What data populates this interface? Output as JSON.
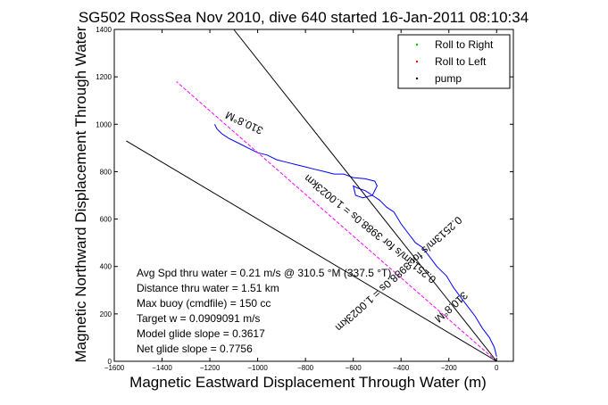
{
  "chart_data": {
    "type": "line",
    "title": "SG502 RossSea Nov 2010, dive 640 started 16-Jan-2011 08:10:34",
    "xlabel": "Magnetic Eastward Displacement Through Water (m)",
    "ylabel": "Magnetic Northward Displacement Through Water",
    "xlim": [
      -1600,
      70
    ],
    "ylim": [
      0,
      1400
    ],
    "xticks": [
      -1600,
      -1400,
      -1200,
      -1000,
      -800,
      -600,
      -400,
      -200,
      0
    ],
    "yticks": [
      0,
      200,
      400,
      600,
      800,
      1000,
      1200,
      1400
    ],
    "grid": false,
    "legend_position": "top-right",
    "legend": [
      {
        "label": "Roll to Right",
        "color": "#00c000",
        "marker": "dot"
      },
      {
        "label": "Roll to Left",
        "color": "#ff0000",
        "marker": "dot"
      },
      {
        "label": "pump",
        "color": "#000000",
        "marker": "dot"
      }
    ],
    "series": [
      {
        "color": "#0000ff",
        "style": "solid",
        "x": [
          0,
          -10,
          -30,
          -60,
          -90,
          -120,
          -150,
          -180,
          -210,
          -250,
          -280,
          -310,
          -340,
          -370,
          -400,
          -430,
          -460,
          -490,
          -520,
          -550,
          -580,
          -600,
          -590,
          -560,
          -520,
          -500,
          -510,
          -550,
          -600,
          -640,
          -680,
          -720,
          -760,
          -800,
          -840,
          -880,
          -920,
          -960,
          -1000,
          -1040,
          -1080,
          -1120,
          -1150,
          -1170,
          -1180
        ],
        "y": [
          20,
          60,
          100,
          140,
          190,
          230,
          270,
          310,
          360,
          400,
          440,
          480,
          500,
          540,
          580,
          630,
          650,
          680,
          700,
          720,
          730,
          740,
          700,
          690,
          700,
          740,
          760,
          770,
          775,
          790,
          790,
          800,
          810,
          820,
          830,
          840,
          850,
          870,
          880,
          900,
          920,
          940,
          960,
          980,
          1000
        ]
      },
      {
        "color": "#ff00ff",
        "style": "dashed",
        "x": [
          0,
          -1340
        ],
        "y": [
          0,
          1180
        ]
      },
      {
        "color": "#000000",
        "style": "solid",
        "x": [
          0,
          -1100
        ],
        "y": [
          0,
          1400
        ]
      },
      {
        "color": "#000000",
        "style": "solid",
        "x": [
          0,
          -1550
        ],
        "y": [
          0,
          930
        ]
      }
    ],
    "annotations": [
      {
        "text": "310.8°M",
        "x": -1050,
        "y": 1020,
        "angle_deg": 205
      },
      {
        "text": "0.2513m/s for 3988.0s = 1.0023km",
        "x": -420,
        "y": 380,
        "angle_deg": 138
      },
      {
        "text": "0.2513m/s for 3988.0s = 1.0023km",
        "x": -520,
        "y": 570,
        "angle_deg": 219
      },
      {
        "text": "310.8°M",
        "x": -200,
        "y": 240,
        "angle_deg": 138
      }
    ],
    "stats": [
      "Avg Spd thru water = 0.21 m/s @ 310.5 °M (337.5 °T)",
      "Distance thru water = 1.51 km",
      "Max buoy (cmdfile) = 150 cc",
      "Target w = 0.0909091 m/s",
      "Model glide slope = 0.3617",
      "Net glide slope = 0.7756"
    ]
  }
}
